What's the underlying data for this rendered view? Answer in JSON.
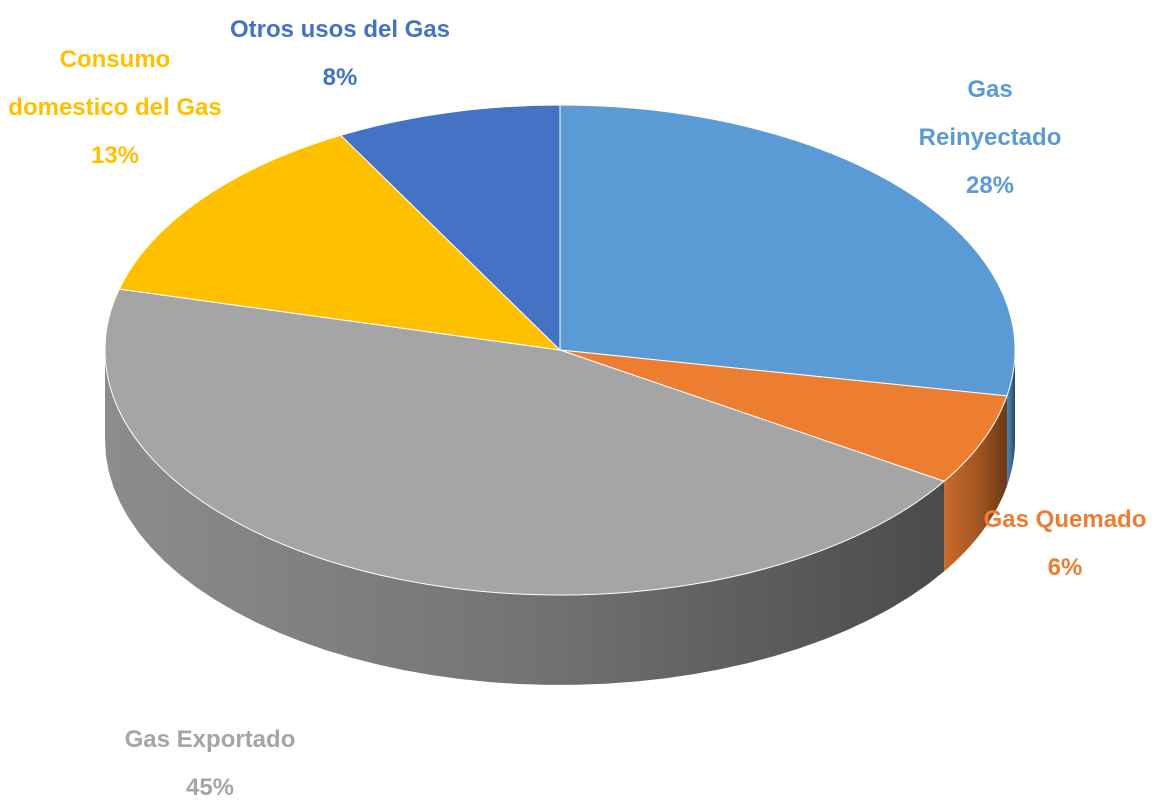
{
  "chart_data": {
    "type": "pie",
    "categories": [
      "Gas Reinyectado",
      "Gas Quemado",
      "Gas Exportado",
      "Consumo domestico del Gas",
      "Otros usos del Gas"
    ],
    "values": [
      28,
      6,
      45,
      13,
      8
    ],
    "value_labels": [
      "28%",
      "6%",
      "45%",
      "13%",
      "8%"
    ],
    "colors": [
      "#5b9bd5",
      "#ed7d31",
      "#a5a5a5",
      "#ffc000",
      "#4472c4"
    ]
  }
}
